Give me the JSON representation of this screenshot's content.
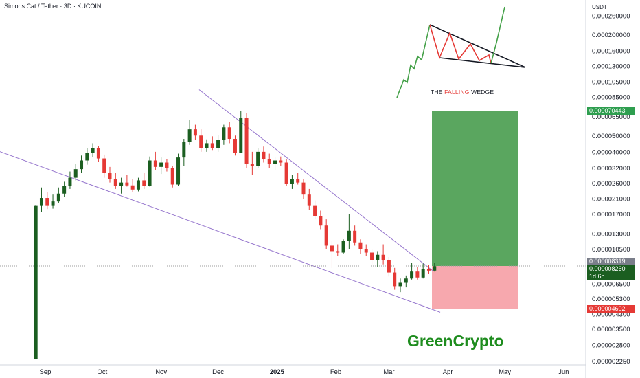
{
  "header": {
    "title": "Simons Cat / Tether · 3D · KUCOIN",
    "currency": "USDT"
  },
  "price_tags": {
    "target": "0.000070443",
    "last": "0.000008319",
    "current": "0.000008260",
    "countdown": "1d 6h",
    "stop": "0.000004602"
  },
  "annotation": {
    "prefix": "THE ",
    "highlight": "FALLING",
    "suffix": " WEDGE"
  },
  "brand": "GreenCrypto",
  "colors": {
    "up": "#1b5e20",
    "down": "#e53935",
    "trendline": "#9575cd",
    "target_zone": "#5aa65f",
    "stop_zone": "#f7a8ae",
    "target_tag": "#2e9e4f",
    "last_tag": "#7a7e8a",
    "current_tag": "#1b5e20",
    "stop_tag": "#e53935"
  },
  "chart_data": {
    "type": "candlestick",
    "symbol": "Simons Cat / Tether",
    "timeframe": "3D",
    "exchange": "KUCOIN",
    "y_scale": "log",
    "ylim": [
      2e-06,
      0.00033
    ],
    "y_ticks": [
      "0.000260000",
      "0.000200000",
      "0.000160000",
      "0.000130000",
      "0.000105000",
      "0.000085000",
      "0.000065000",
      "0.000050000",
      "0.000040000",
      "0.000032000",
      "0.000026000",
      "0.000021000",
      "0.000017000",
      "0.000013000",
      "0.000010500",
      "0.000006500",
      "0.000005300",
      "0.000004300",
      "0.000003500",
      "0.000002800",
      "0.000002250"
    ],
    "x_ticks": [
      "Sep",
      "Oct",
      "Nov",
      "Dec",
      "2025",
      "Feb",
      "Mar",
      "Apr",
      "May",
      "Jun"
    ],
    "entry_price": 8.319e-06,
    "target_price": 7.0443e-05,
    "stop_price": 4.602e-06,
    "candles": [
      {
        "date": "2024-08-27",
        "o": 2.3e-06,
        "h": 1.92e-05,
        "l": 2.3e-06,
        "c": 1.9e-05
      },
      {
        "date": "2024-08-30",
        "o": 1.9e-05,
        "h": 2.45e-05,
        "l": 1.75e-05,
        "c": 2.12e-05
      },
      {
        "date": "2024-09-02",
        "o": 2.12e-05,
        "h": 2.3e-05,
        "l": 1.82e-05,
        "c": 1.9e-05
      },
      {
        "date": "2024-09-05",
        "o": 1.9e-05,
        "h": 2.22e-05,
        "l": 1.83e-05,
        "c": 2.02e-05
      },
      {
        "date": "2024-09-08",
        "o": 2.02e-05,
        "h": 2.45e-05,
        "l": 1.97e-05,
        "c": 2.25e-05
      },
      {
        "date": "2024-09-11",
        "o": 2.25e-05,
        "h": 2.65e-05,
        "l": 2.16e-05,
        "c": 2.5e-05
      },
      {
        "date": "2024-09-14",
        "o": 2.5e-05,
        "h": 3.05e-05,
        "l": 2.4e-05,
        "c": 2.8e-05
      },
      {
        "date": "2024-09-17",
        "o": 2.8e-05,
        "h": 3.4e-05,
        "l": 2.7e-05,
        "c": 3.15e-05
      },
      {
        "date": "2024-09-20",
        "o": 3.15e-05,
        "h": 3.8e-05,
        "l": 3e-05,
        "c": 3.55e-05
      },
      {
        "date": "2024-09-23",
        "o": 3.55e-05,
        "h": 4.2e-05,
        "l": 3.35e-05,
        "c": 3.95e-05
      },
      {
        "date": "2024-09-26",
        "o": 3.95e-05,
        "h": 4.5e-05,
        "l": 3.72e-05,
        "c": 4.2e-05
      },
      {
        "date": "2024-09-29",
        "o": 4.2e-05,
        "h": 4.35e-05,
        "l": 3.5e-05,
        "c": 3.65e-05
      },
      {
        "date": "2024-10-02",
        "o": 3.65e-05,
        "h": 3.85e-05,
        "l": 2.8e-05,
        "c": 3e-05
      },
      {
        "date": "2024-10-05",
        "o": 3e-05,
        "h": 3.25e-05,
        "l": 2.62e-05,
        "c": 2.75e-05
      },
      {
        "date": "2024-10-08",
        "o": 2.75e-05,
        "h": 3e-05,
        "l": 2.4e-05,
        "c": 2.5e-05
      },
      {
        "date": "2024-10-11",
        "o": 2.5e-05,
        "h": 2.8e-05,
        "l": 2.25e-05,
        "c": 2.62e-05
      },
      {
        "date": "2024-10-14",
        "o": 2.62e-05,
        "h": 2.9e-05,
        "l": 2.48e-05,
        "c": 2.52e-05
      },
      {
        "date": "2024-10-17",
        "o": 2.52e-05,
        "h": 2.75e-05,
        "l": 2.3e-05,
        "c": 2.38e-05
      },
      {
        "date": "2024-10-20",
        "o": 2.38e-05,
        "h": 2.8e-05,
        "l": 2.32e-05,
        "c": 2.7e-05
      },
      {
        "date": "2024-10-23",
        "o": 2.7e-05,
        "h": 2.98e-05,
        "l": 2.4e-05,
        "c": 2.5e-05
      },
      {
        "date": "2024-10-26",
        "o": 2.5e-05,
        "h": 3.75e-05,
        "l": 2.48e-05,
        "c": 3.55e-05
      },
      {
        "date": "2024-10-29",
        "o": 3.55e-05,
        "h": 4e-05,
        "l": 3.1e-05,
        "c": 3.25e-05
      },
      {
        "date": "2024-11-01",
        "o": 3.25e-05,
        "h": 3.7e-05,
        "l": 2.95e-05,
        "c": 3.45e-05
      },
      {
        "date": "2024-11-04",
        "o": 3.45e-05,
        "h": 3.62e-05,
        "l": 3.05e-05,
        "c": 3.2e-05
      },
      {
        "date": "2024-11-07",
        "o": 3.2e-05,
        "h": 3.3e-05,
        "l": 2.45e-05,
        "c": 2.55e-05
      },
      {
        "date": "2024-11-10",
        "o": 2.55e-05,
        "h": 3.9e-05,
        "l": 2.5e-05,
        "c": 3.7e-05
      },
      {
        "date": "2024-11-13",
        "o": 3.7e-05,
        "h": 4.78e-05,
        "l": 3.3e-05,
        "c": 4.6e-05
      },
      {
        "date": "2024-11-16",
        "o": 4.6e-05,
        "h": 6.2e-05,
        "l": 4.4e-05,
        "c": 5.45e-05
      },
      {
        "date": "2024-11-19",
        "o": 5.45e-05,
        "h": 5.8e-05,
        "l": 4.7e-05,
        "c": 5e-05
      },
      {
        "date": "2024-11-22",
        "o": 5e-05,
        "h": 5.45e-05,
        "l": 4e-05,
        "c": 4.22e-05
      },
      {
        "date": "2024-11-25",
        "o": 4.22e-05,
        "h": 4.75e-05,
        "l": 4e-05,
        "c": 4.5e-05
      },
      {
        "date": "2024-11-28",
        "o": 4.5e-05,
        "h": 4.95e-05,
        "l": 4.1e-05,
        "c": 4.2e-05
      },
      {
        "date": "2024-12-01",
        "o": 4.2e-05,
        "h": 5.05e-05,
        "l": 4e-05,
        "c": 4.7e-05
      },
      {
        "date": "2024-12-04",
        "o": 4.7e-05,
        "h": 5.8e-05,
        "l": 4.4e-05,
        "c": 5.6e-05
      },
      {
        "date": "2024-12-07",
        "o": 5.6e-05,
        "h": 6e-05,
        "l": 4.5e-05,
        "c": 4.78e-05
      },
      {
        "date": "2024-12-10",
        "o": 4.78e-05,
        "h": 5e-05,
        "l": 3.8e-05,
        "c": 3.95e-05
      },
      {
        "date": "2024-12-13",
        "o": 3.95e-05,
        "h": 7e-05,
        "l": 3.92e-05,
        "c": 6.4e-05
      },
      {
        "date": "2024-12-16",
        "o": 6.4e-05,
        "h": 6.8e-05,
        "l": 3.2e-05,
        "c": 3.4e-05
      },
      {
        "date": "2024-12-19",
        "o": 3.4e-05,
        "h": 4e-05,
        "l": 2.9e-05,
        "c": 3.3e-05
      },
      {
        "date": "2024-12-22",
        "o": 3.3e-05,
        "h": 4.2e-05,
        "l": 3.2e-05,
        "c": 4e-05
      },
      {
        "date": "2024-12-25",
        "o": 4e-05,
        "h": 4.3e-05,
        "l": 3.45e-05,
        "c": 3.6e-05
      },
      {
        "date": "2024-12-28",
        "o": 3.6e-05,
        "h": 3.9e-05,
        "l": 3.2e-05,
        "c": 3.4e-05
      },
      {
        "date": "2024-12-31",
        "o": 3.4e-05,
        "h": 3.7e-05,
        "l": 3.1e-05,
        "c": 3.55e-05
      },
      {
        "date": "2025-01-03",
        "o": 3.55e-05,
        "h": 3.75e-05,
        "l": 3.3e-05,
        "c": 3.45e-05
      },
      {
        "date": "2025-01-06",
        "o": 3.45e-05,
        "h": 3.6e-05,
        "l": 2.5e-05,
        "c": 2.58e-05
      },
      {
        "date": "2025-01-09",
        "o": 2.58e-05,
        "h": 2.9e-05,
        "l": 2.4e-05,
        "c": 2.75e-05
      },
      {
        "date": "2025-01-12",
        "o": 2.75e-05,
        "h": 3e-05,
        "l": 2.55e-05,
        "c": 2.62e-05
      },
      {
        "date": "2025-01-15",
        "o": 2.62e-05,
        "h": 2.75e-05,
        "l": 2.1e-05,
        "c": 2.22e-05
      },
      {
        "date": "2025-01-18",
        "o": 2.22e-05,
        "h": 2.4e-05,
        "l": 1.8e-05,
        "c": 1.9e-05
      },
      {
        "date": "2025-01-21",
        "o": 1.9e-05,
        "h": 2.05e-05,
        "l": 1.58e-05,
        "c": 1.65e-05
      },
      {
        "date": "2025-01-24",
        "o": 1.65e-05,
        "h": 1.78e-05,
        "l": 1.38e-05,
        "c": 1.45e-05
      },
      {
        "date": "2025-01-27",
        "o": 1.45e-05,
        "h": 1.58e-05,
        "l": 1.05e-05,
        "c": 1.1e-05
      },
      {
        "date": "2025-01-30",
        "o": 1.1e-05,
        "h": 1.18e-05,
        "l": 8.1e-06,
        "c": 1.02e-05
      },
      {
        "date": "2025-02-02",
        "o": 1.02e-05,
        "h": 1.12e-05,
        "l": 9.5e-06,
        "c": 1e-05
      },
      {
        "date": "2025-02-05",
        "o": 1e-05,
        "h": 1.2e-05,
        "l": 9.8e-06,
        "c": 1.17e-05
      },
      {
        "date": "2025-02-08",
        "o": 1.17e-05,
        "h": 1.7e-05,
        "l": 1.05e-05,
        "c": 1.35e-05
      },
      {
        "date": "2025-02-11",
        "o": 1.35e-05,
        "h": 1.45e-05,
        "l": 1.1e-05,
        "c": 1.15e-05
      },
      {
        "date": "2025-02-14",
        "o": 1.15e-05,
        "h": 1.2e-05,
        "l": 9.8e-06,
        "c": 1.05e-05
      },
      {
        "date": "2025-02-17",
        "o": 1.05e-05,
        "h": 1.12e-05,
        "l": 9.5e-06,
        "c": 1e-05
      },
      {
        "date": "2025-02-20",
        "o": 1e-05,
        "h": 1.05e-05,
        "l": 8.5e-06,
        "c": 9e-06
      },
      {
        "date": "2025-02-23",
        "o": 9e-06,
        "h": 1.02e-05,
        "l": 8.2e-06,
        "c": 9.7e-06
      },
      {
        "date": "2025-02-26",
        "o": 9.7e-06,
        "h": 1.12e-05,
        "l": 8.5e-06,
        "c": 9e-06
      },
      {
        "date": "2025-03-01",
        "o": 9e-06,
        "h": 9.4e-06,
        "l": 7.2e-06,
        "c": 7.6e-06
      },
      {
        "date": "2025-03-04",
        "o": 7.6e-06,
        "h": 8.1e-06,
        "l": 6e-06,
        "c": 6.3e-06
      },
      {
        "date": "2025-03-07",
        "o": 6.3e-06,
        "h": 7e-06,
        "l": 5.8e-06,
        "c": 6.6e-06
      },
      {
        "date": "2025-03-10",
        "o": 6.6e-06,
        "h": 7.3e-06,
        "l": 6.2e-06,
        "c": 7e-06
      },
      {
        "date": "2025-03-13",
        "o": 7e-06,
        "h": 8.7e-06,
        "l": 6.9e-06,
        "c": 7.7e-06
      },
      {
        "date": "2025-03-16",
        "o": 7.7e-06,
        "h": 8.2e-06,
        "l": 6.9e-06,
        "c": 7.1e-06
      },
      {
        "date": "2025-03-19",
        "o": 7.1e-06,
        "h": 8.6e-06,
        "l": 7e-06,
        "c": 8e-06
      },
      {
        "date": "2025-03-22",
        "o": 8e-06,
        "h": 8.4e-06,
        "l": 7.5e-06,
        "c": 7.8e-06
      },
      {
        "date": "2025-03-25",
        "o": 7.8e-06,
        "h": 8.7e-06,
        "l": 7.7e-06,
        "c": 8.3e-06
      }
    ],
    "trendlines": [
      {
        "name": "upper",
        "from": {
          "date": "2024-11-21",
          "price": 9.4e-05
        },
        "to": {
          "date": "2025-03-24",
          "price": 7.8e-06
        }
      },
      {
        "name": "lower",
        "from": {
          "date": "2024-07-27",
          "price": 4.5e-05
        },
        "to": {
          "date": "2025-03-28",
          "price": 4.4e-06
        }
      }
    ]
  }
}
